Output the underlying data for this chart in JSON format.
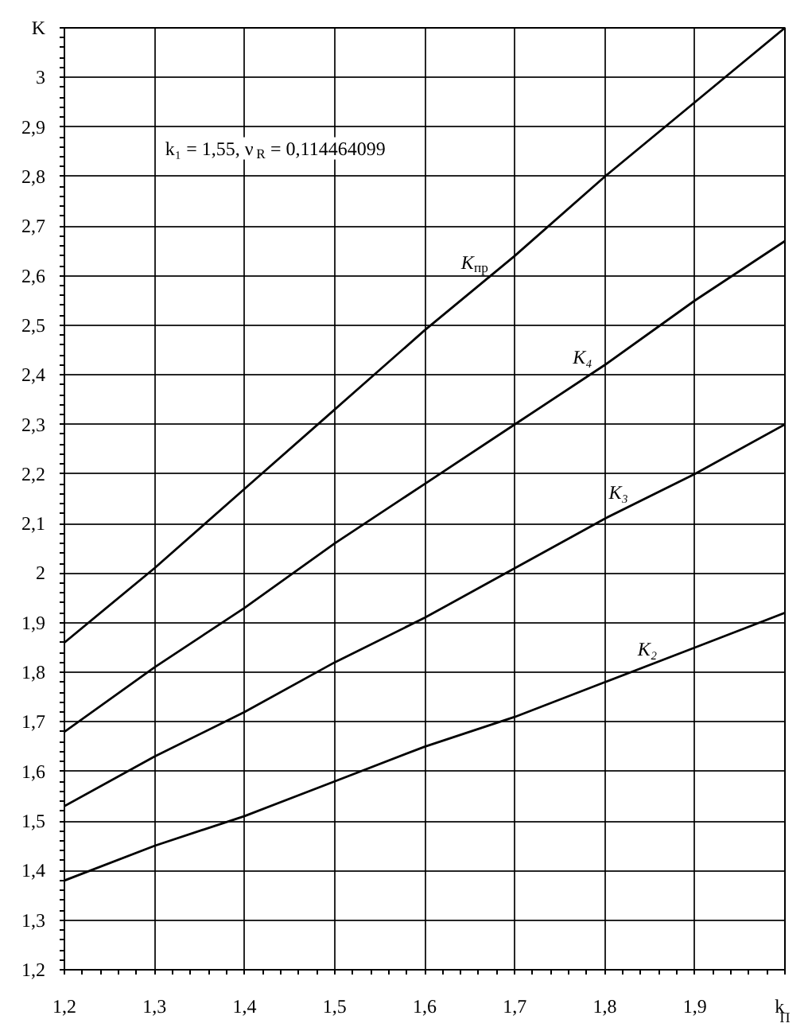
{
  "chart_data": {
    "type": "line",
    "xlabel": "k$_{П}$",
    "ylabel": "K",
    "x": [
      1.2,
      1.3,
      1.4,
      1.5,
      1.6,
      1.7,
      1.8,
      1.9,
      2.0
    ],
    "xlim": [
      1.2,
      2.0
    ],
    "xticks": [
      {
        "value": 1.2,
        "label": "1,2"
      },
      {
        "value": 1.3,
        "label": "1,3"
      },
      {
        "value": 1.4,
        "label": "1,4"
      },
      {
        "value": 1.5,
        "label": "1,5"
      },
      {
        "value": 1.6,
        "label": "1,6"
      },
      {
        "value": 1.7,
        "label": "1,7"
      },
      {
        "value": 1.8,
        "label": "1,8"
      },
      {
        "value": 1.9,
        "label": "1,9"
      }
    ],
    "ylim": [
      1.2,
      3.1
    ],
    "yticks": [
      {
        "value": 1.2,
        "label": "1,2"
      },
      {
        "value": 1.3,
        "label": "1,3"
      },
      {
        "value": 1.4,
        "label": "1,4"
      },
      {
        "value": 1.5,
        "label": "1,5"
      },
      {
        "value": 1.6,
        "label": "1,6"
      },
      {
        "value": 1.7,
        "label": "1,7"
      },
      {
        "value": 1.8,
        "label": "1,8"
      },
      {
        "value": 1.9,
        "label": "1,9"
      },
      2,
      {
        "value": 2.1,
        "label": "2,1"
      },
      {
        "value": 2.2,
        "label": "2,2"
      },
      {
        "value": 2.3,
        "label": "2,3"
      },
      {
        "value": 2.4,
        "label": "2,4"
      },
      {
        "value": 2.5,
        "label": "2,5"
      },
      {
        "value": 2.6,
        "label": "2,6"
      },
      {
        "value": 2.7,
        "label": "2,7"
      },
      {
        "value": 2.8,
        "label": "2,8"
      },
      {
        "value": 2.9,
        "label": "2,9"
      },
      3
    ],
    "grid": true,
    "line_style": "solid",
    "series": [
      {
        "name": "K$_{пр}$",
        "color": "#000000",
        "values": [
          1.86,
          2.01,
          2.17,
          2.33,
          2.49,
          2.64,
          2.8,
          2.95,
          3.1
        ]
      },
      {
        "name": "K₄",
        "color": "#000000",
        "values": [
          1.68,
          1.81,
          1.93,
          2.06,
          2.18,
          2.3,
          2.42,
          2.55,
          2.67
        ]
      },
      {
        "name": "K₃",
        "color": "#000000",
        "values": [
          1.53,
          1.63,
          1.72,
          1.82,
          1.91,
          2.01,
          2.11,
          2.2,
          2.3
        ]
      },
      {
        "name": "K₂",
        "color": "#000000",
        "values": [
          1.38,
          1.45,
          1.51,
          1.58,
          1.65,
          1.71,
          1.78,
          1.85,
          1.92
        ]
      }
    ],
    "annotations": [
      "k₁ = 1,55,  ν$_{R}$ = 0,114464099"
    ]
  }
}
